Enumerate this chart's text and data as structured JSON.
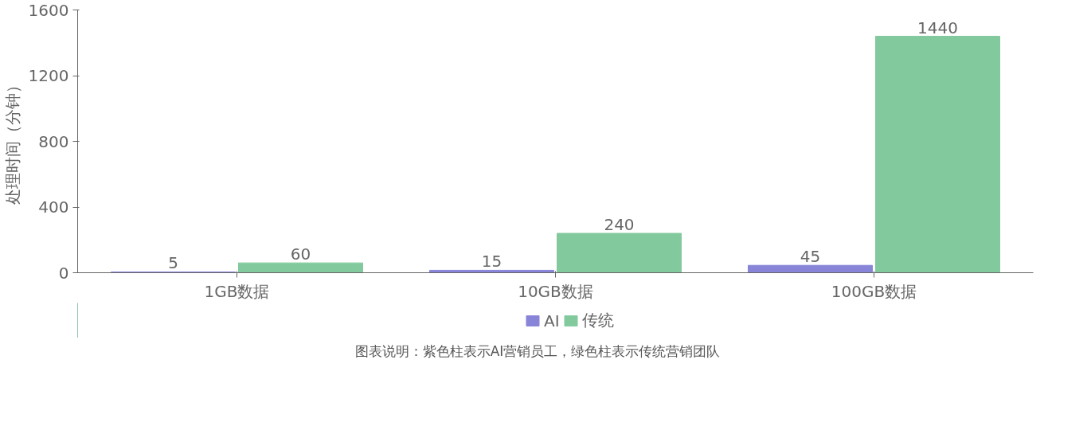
{
  "chart_data": {
    "type": "bar",
    "ylabel": "处理时间（分钟）",
    "categories": [
      "1GB数据",
      "10GB数据",
      "100GB数据"
    ],
    "series": [
      {
        "name": "AI",
        "color": "#8884d8",
        "values": [
          5,
          15,
          45
        ]
      },
      {
        "name": "传统",
        "color": "#82ca9d",
        "values": [
          60,
          240,
          1440
        ]
      }
    ],
    "ylim": [
      0,
      1600
    ],
    "yticks": [
      0,
      400,
      800,
      1200,
      1600
    ],
    "grid": false,
    "legend": "bottom",
    "data_labels": true,
    "annotations": [
      "图表说明：紫色柱表示AI营销员工，绿色柱表示传统营销团队"
    ]
  }
}
